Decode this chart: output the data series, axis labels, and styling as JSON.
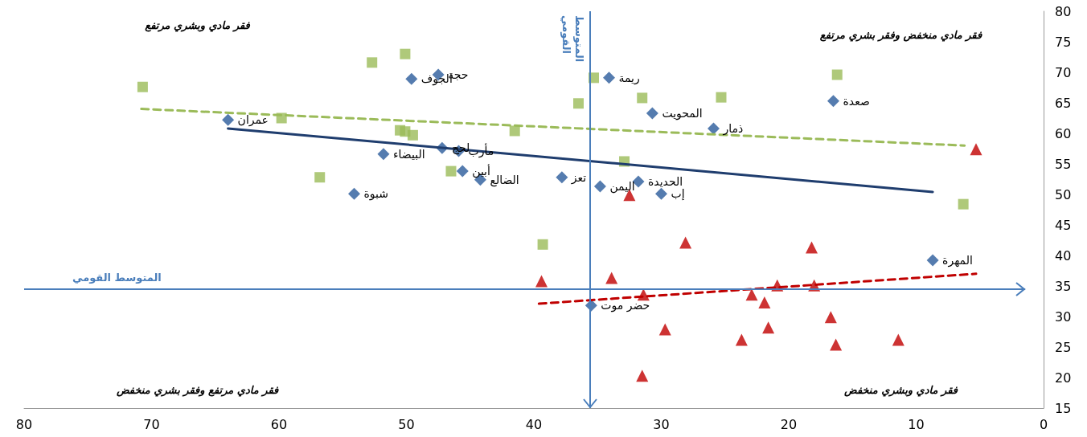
{
  "chart_data": {
    "type": "scatter",
    "xlim": [
      80,
      0
    ],
    "xticks": [
      80,
      70,
      60,
      50,
      40,
      30,
      20,
      10,
      0
    ],
    "ylim": [
      15,
      80
    ],
    "yticks": [
      15,
      20,
      25,
      30,
      35,
      40,
      45,
      50,
      55,
      60,
      65,
      70,
      75,
      80
    ],
    "grid": false,
    "series": [
      {
        "marker": "diamond",
        "color": "#2b5b9b",
        "x": [
          64.0,
          47.5,
          49.6,
          34.1,
          30.7,
          25.9,
          16.5,
          47.2,
          45.9,
          51.8,
          45.6,
          44.2,
          37.8,
          34.8,
          31.8,
          30.0,
          54.1,
          35.5,
          8.7
        ],
        "values": [
          62.2,
          69.6,
          68.9,
          69.1,
          63.3,
          60.8,
          65.3,
          57.6,
          57.1,
          56.6,
          53.8,
          52.4,
          52.8,
          51.3,
          52.1,
          50.1,
          50.1,
          31.8,
          39.2
        ]
      },
      {
        "marker": "square",
        "color": "#9bbb59",
        "x": [
          70.7,
          52.7,
          50.1,
          59.8,
          35.3,
          36.5,
          31.5,
          25.3,
          16.2,
          41.5,
          50.5,
          50.1,
          49.5,
          46.5,
          32.9,
          56.8,
          39.3,
          6.3
        ],
        "values": [
          67.6,
          71.6,
          73.0,
          62.5,
          69.1,
          64.9,
          65.8,
          65.9,
          69.6,
          60.4,
          60.5,
          60.3,
          59.7,
          53.8,
          55.4,
          52.8,
          41.8,
          48.4
        ]
      },
      {
        "marker": "triangle",
        "color": "#c00000",
        "x": [
          5.3,
          32.5,
          28.1,
          39.4,
          33.9,
          31.4,
          29.7,
          31.5,
          18.2,
          20.9,
          18.0,
          22.9,
          21.9,
          16.7,
          21.6,
          23.7,
          16.3,
          11.4
        ],
        "values": [
          57.4,
          49.9,
          42.1,
          35.8,
          36.3,
          33.6,
          27.9,
          20.3,
          41.3,
          35.1,
          35.1,
          33.6,
          32.3,
          29.9,
          28.2,
          26.2,
          25.4,
          26.2
        ]
      },
      {
        "type": "line",
        "marker": "none",
        "line_style": "solid",
        "color": "#1f3d6e",
        "x": [
          64.0,
          8.7
        ],
        "values": [
          60.8,
          50.4
        ]
      },
      {
        "type": "line",
        "marker": "none",
        "line_style": "dashed",
        "color": "#9bbb59",
        "x": [
          70.8,
          6.2
        ],
        "values": [
          64.0,
          58.0
        ]
      },
      {
        "type": "line",
        "marker": "none",
        "line_style": "dashed",
        "color": "#c00000",
        "x": [
          39.6,
          5.3
        ],
        "values": [
          32.1,
          37.0
        ]
      }
    ],
    "ref_lines": [
      {
        "axis": "x",
        "value": 35.6,
        "label": "المتوسط القومي",
        "color": "#4a7ebb"
      },
      {
        "axis": "y",
        "value": 34.5,
        "label": "المتوسط القومي",
        "color": "#4a7ebb"
      }
    ],
    "annotations": [
      "فقر مادي وبشري مرتفع",
      "فقر مادي منخفض وفقر بشري مرتفع",
      "فقر مادي مرتفع وفقر بشري منخفض",
      "فقر مادي وبشري منخفض",
      {
        "text": "عمران",
        "x": 64.0,
        "y": 62.2
      },
      {
        "text": "حجة",
        "x": 47.5,
        "y": 69.6
      },
      {
        "text": "الجوف",
        "x": 49.6,
        "y": 68.9
      },
      {
        "text": "ريمة",
        "x": 34.1,
        "y": 69.1
      },
      {
        "text": "المحويت",
        "x": 30.7,
        "y": 63.3
      },
      {
        "text": "ذمار",
        "x": 25.9,
        "y": 60.8
      },
      {
        "text": "صعدة",
        "x": 16.5,
        "y": 65.3
      },
      {
        "text": "لحج",
        "x": 47.2,
        "y": 57.6
      },
      {
        "text": "مأرب",
        "x": 45.9,
        "y": 57.1
      },
      {
        "text": "البيضاء",
        "x": 51.8,
        "y": 56.6
      },
      {
        "text": "أبين",
        "x": 45.6,
        "y": 53.8
      },
      {
        "text": "الضالع",
        "x": 44.2,
        "y": 52.4
      },
      {
        "text": "تعز",
        "x": 37.8,
        "y": 52.8
      },
      {
        "text": "اليمن",
        "x": 34.8,
        "y": 51.3
      },
      {
        "text": "الحديدة",
        "x": 31.8,
        "y": 52.1
      },
      {
        "text": "إب",
        "x": 30.0,
        "y": 50.1
      },
      {
        "text": "شبوة",
        "x": 54.1,
        "y": 50.1
      },
      {
        "text": "حضر موت",
        "x": 35.5,
        "y": 31.8
      },
      {
        "text": "المهرة",
        "x": 8.7,
        "y": 39.2
      }
    ]
  }
}
